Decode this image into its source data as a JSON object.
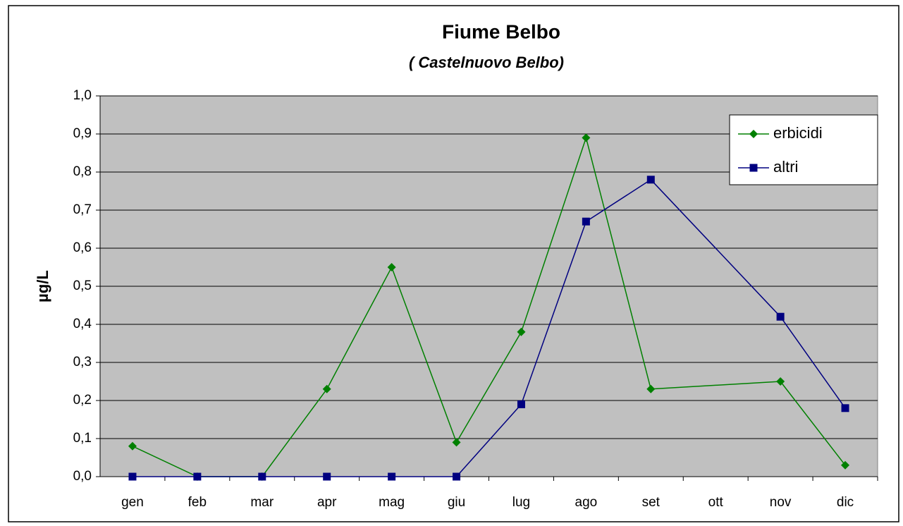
{
  "chart_data": {
    "type": "line",
    "title": "Fiume Belbo",
    "subtitle": "( Castelnuovo Belbo)",
    "y_label": "µg/L",
    "categories": [
      "gen",
      "feb",
      "mar",
      "apr",
      "mag",
      "giu",
      "lug",
      "ago",
      "set",
      "ott",
      "nov",
      "dic"
    ],
    "series": [
      {
        "name": "erbicidi",
        "color": "#008000",
        "marker": "diamond",
        "values": [
          0.08,
          0,
          0,
          0.23,
          0.55,
          0.09,
          0.38,
          0.89,
          0.23,
          null,
          0.25,
          0.03
        ]
      },
      {
        "name": "altri",
        "color": "#000080",
        "marker": "square",
        "values": [
          0,
          0,
          0,
          0,
          0,
          0,
          0.19,
          0.67,
          0.78,
          null,
          0.42,
          0.18
        ]
      }
    ],
    "ylim": [
      0,
      1
    ],
    "yticks": [
      {
        "value": 0,
        "label": "0,0"
      },
      {
        "value": 0.1,
        "label": "0,1"
      },
      {
        "value": 0.2,
        "label": "0,2"
      },
      {
        "value": 0.3,
        "label": "0,3"
      },
      {
        "value": 0.4,
        "label": "0,4"
      },
      {
        "value": 0.5,
        "label": "0,5"
      },
      {
        "value": 0.6,
        "label": "0,6"
      },
      {
        "value": 0.7,
        "label": "0,7"
      },
      {
        "value": 0.8,
        "label": "0,8"
      },
      {
        "value": 0.9,
        "label": "0,9"
      },
      {
        "value": 1,
        "label": "1,0"
      }
    ],
    "grid": true,
    "legend": "upper right"
  }
}
